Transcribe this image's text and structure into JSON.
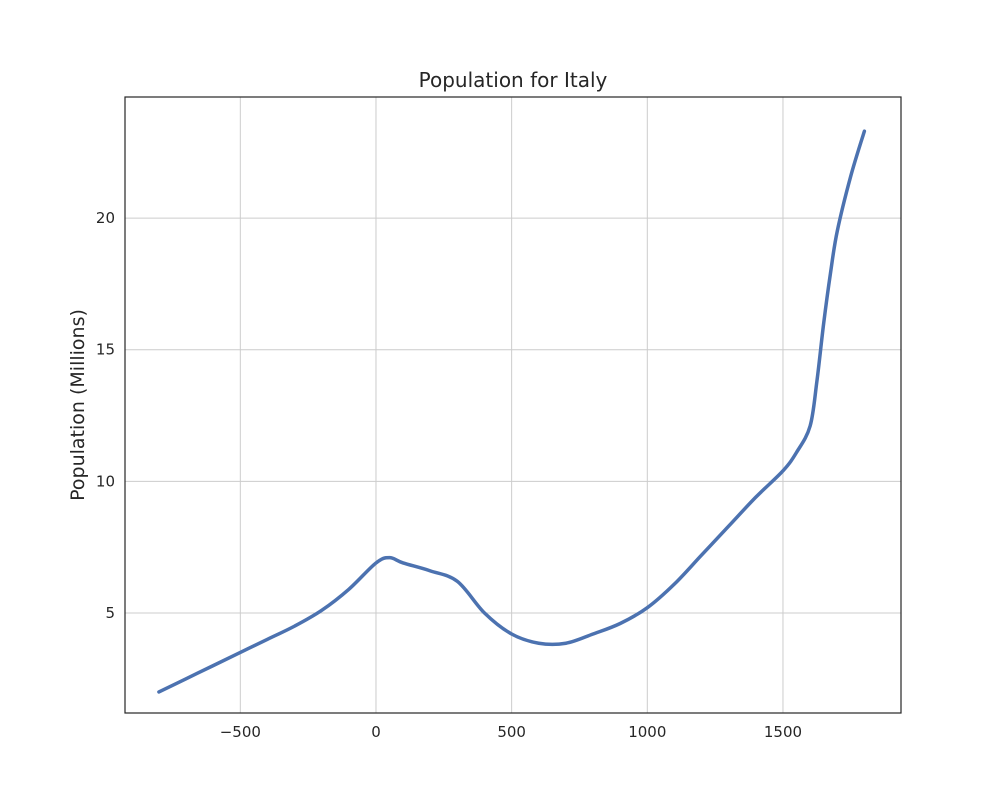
{
  "chart_data": {
    "type": "line",
    "title": "Population for Italy",
    "xlabel": "",
    "ylabel": "Population (Millions)",
    "xlim": [
      -925,
      1935
    ],
    "ylim": [
      1.2,
      24.6
    ],
    "xticks": [
      -500,
      0,
      500,
      1000,
      1500
    ],
    "xtick_labels": [
      "−500",
      "0",
      "500",
      "1000",
      "1500"
    ],
    "yticks": [
      5,
      10,
      15,
      20
    ],
    "ytick_labels": [
      "5",
      "10",
      "15",
      "20"
    ],
    "grid": true,
    "line_color": "#4c72b0",
    "series": [
      {
        "x": [
          -800,
          -700,
          -600,
          -500,
          -400,
          -300,
          -200,
          -100,
          0,
          50,
          100,
          200,
          300,
          400,
          500,
          600,
          700,
          800,
          900,
          1000,
          1100,
          1200,
          1300,
          1400,
          1500,
          1550,
          1600,
          1625,
          1650,
          1675,
          1700,
          1750,
          1800
        ],
        "y": [
          2.0,
          2.5,
          3.0,
          3.5,
          4.0,
          4.5,
          5.1,
          5.9,
          6.9,
          7.1,
          6.9,
          6.6,
          6.2,
          5.0,
          4.2,
          3.85,
          3.85,
          4.2,
          4.6,
          5.2,
          6.1,
          7.2,
          8.3,
          9.4,
          10.4,
          11.1,
          12.1,
          13.8,
          16.0,
          17.9,
          19.5,
          21.6,
          23.3
        ]
      }
    ]
  }
}
